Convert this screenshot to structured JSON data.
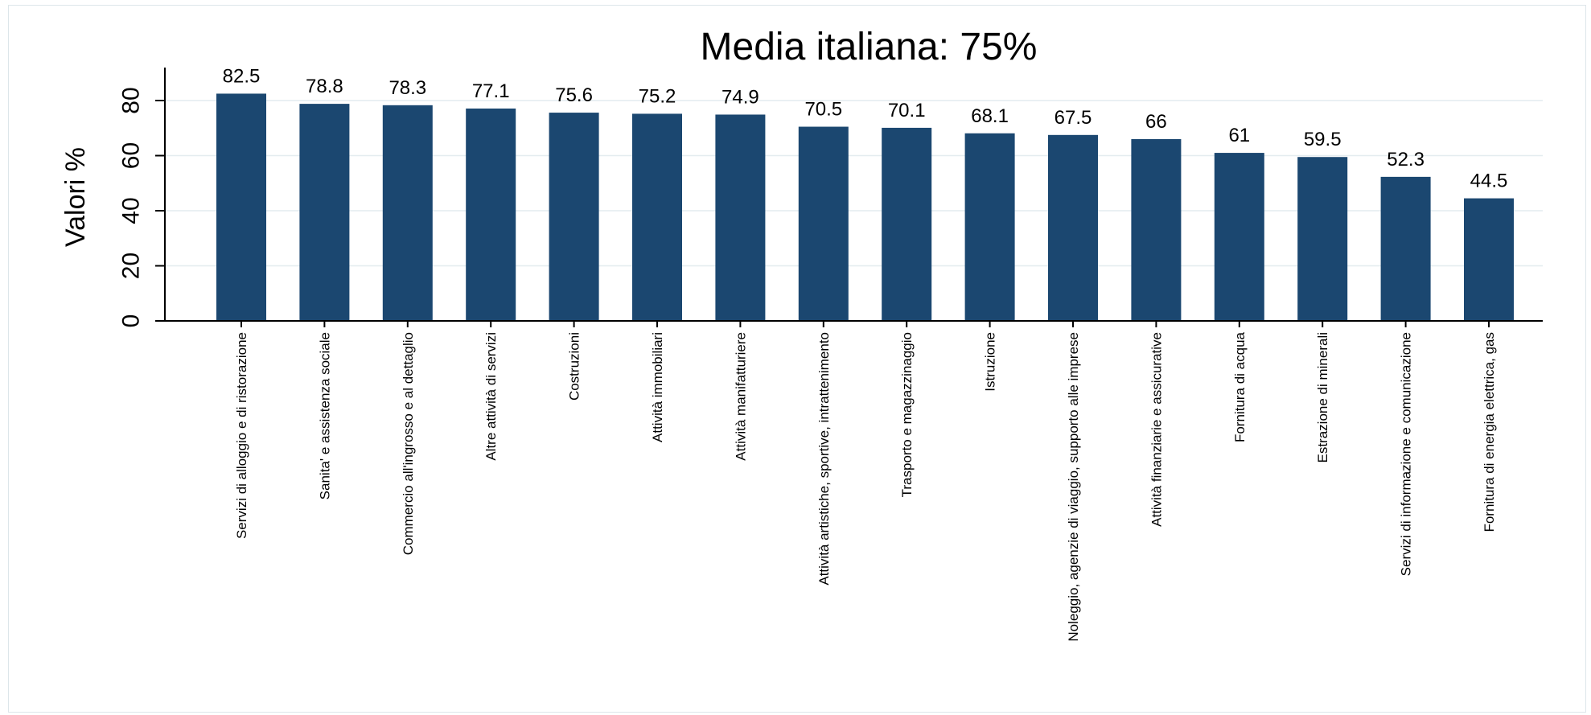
{
  "chart_data": {
    "type": "bar",
    "title": "Media italiana: 75%",
    "xlabel": "",
    "ylabel": "Valori %",
    "ylim": [
      0,
      90
    ],
    "yticks": [
      0,
      20,
      40,
      60,
      80
    ],
    "grid": true,
    "legend": "none",
    "colors": {
      "bar": "#1b4770",
      "grid": "#e4ecef",
      "frame": "#dde6ea"
    },
    "categories": [
      "Servizi di alloggio e di ristorazione",
      "Sanita' e assistenza sociale",
      "Commercio all'ingrosso e al dettaglio",
      "Altre attività di servizi",
      "Costruzioni",
      "Attività immobiliari",
      "Attività manifatturiere",
      "Attività artistiche, sportive, intrattenimento",
      "Trasporto e magazzinaggio",
      "Istruzione",
      "Noleggio, agenzie di viaggio, supporto alle imprese",
      "Attività finanziarie e assicurative",
      "Fornitura di acqua",
      "Estrazione di minerali",
      "Servizi di informazione e comunicazione",
      "Fornitura di energia elettrica, gas"
    ],
    "values": [
      82.5,
      78.8,
      78.3,
      77.1,
      75.6,
      75.2,
      74.9,
      70.5,
      70.1,
      68.1,
      67.5,
      66,
      61,
      59.5,
      52.3,
      44.5
    ],
    "data_labels": [
      "82.5",
      "78.8",
      "78.3",
      "77.1",
      "75.6",
      "75.2",
      "74.9",
      "70.5",
      "70.1",
      "68.1",
      "67.5",
      "66",
      "61",
      "59.5",
      "52.3",
      "44.5"
    ]
  }
}
